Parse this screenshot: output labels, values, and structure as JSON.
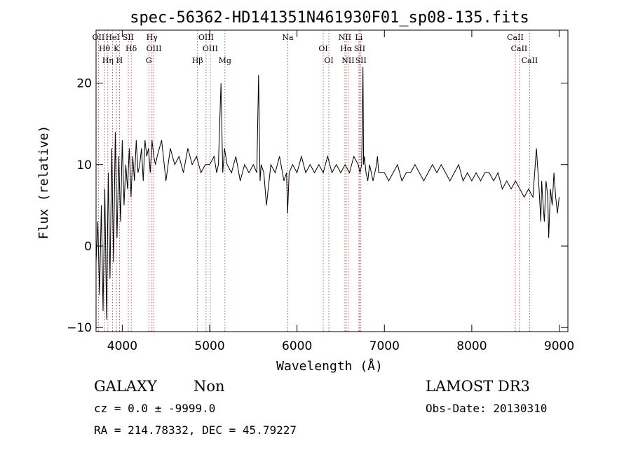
{
  "chart_data": {
    "type": "line",
    "title": "spec-56362-HD141351N461930F01_sp08-135.fits",
    "xlabel": "Wavelength (Å)",
    "ylabel": "Flux (relative)",
    "xlim": [
      3700,
      9100
    ],
    "ylim": [
      -10.5,
      26.5
    ],
    "x_ticks": [
      4000,
      5000,
      6000,
      7000,
      8000,
      9000
    ],
    "y_ticks": [
      -10,
      0,
      10,
      20
    ],
    "grid": false,
    "series": [
      {
        "color": "#000000",
        "x": [
          3700,
          3720,
          3740,
          3760,
          3780,
          3800,
          3820,
          3840,
          3860,
          3880,
          3900,
          3920,
          3940,
          3960,
          3980,
          4000,
          4020,
          4040,
          4060,
          4080,
          4100,
          4120,
          4140,
          4160,
          4180,
          4200,
          4220,
          4240,
          4260,
          4280,
          4300,
          4320,
          4340,
          4360,
          4380,
          4400,
          4450,
          4500,
          4550,
          4600,
          4650,
          4700,
          4750,
          4800,
          4850,
          4900,
          4950,
          5000,
          5050,
          5080,
          5100,
          5130,
          5150,
          5170,
          5200,
          5250,
          5300,
          5350,
          5400,
          5450,
          5500,
          5540,
          5560,
          5577,
          5590,
          5620,
          5650,
          5700,
          5750,
          5800,
          5850,
          5880,
          5892,
          5910,
          5950,
          6000,
          6050,
          6100,
          6150,
          6200,
          6250,
          6300,
          6350,
          6400,
          6450,
          6500,
          6550,
          6600,
          6650,
          6700,
          6720,
          6740,
          6755,
          6762,
          6770,
          6790,
          6810,
          6830,
          6850,
          6870,
          6890,
          6910,
          6920,
          6935,
          6950,
          7000,
          7050,
          7100,
          7150,
          7200,
          7250,
          7300,
          7350,
          7400,
          7450,
          7500,
          7550,
          7600,
          7650,
          7700,
          7750,
          7800,
          7850,
          7900,
          7950,
          8000,
          8050,
          8100,
          8150,
          8200,
          8250,
          8300,
          8350,
          8400,
          8450,
          8500,
          8550,
          8600,
          8650,
          8700,
          8740,
          8770,
          8790,
          8800,
          8810,
          8830,
          8850,
          8870,
          8880,
          8900,
          8920,
          8940,
          8960,
          8980,
          9000
        ],
        "y": [
          -2,
          3,
          -6,
          5,
          -8,
          7,
          -9,
          9,
          -4,
          12,
          -2,
          14,
          1,
          11,
          3,
          13,
          5,
          10,
          7,
          12,
          6,
          11,
          8,
          13,
          9,
          10,
          12,
          8,
          13,
          11,
          12,
          9,
          13,
          11,
          10,
          11,
          13,
          8,
          12,
          10,
          11,
          9,
          12,
          10,
          11,
          9,
          10,
          10,
          11,
          9,
          10,
          20,
          9,
          12,
          10,
          9,
          11,
          8,
          10,
          9,
          10,
          9,
          21,
          8,
          10,
          9,
          5,
          10,
          9,
          11,
          8,
          9,
          4,
          9,
          10,
          9,
          11,
          9,
          10,
          9,
          10,
          9,
          11,
          9,
          10,
          9,
          10,
          9,
          11,
          10,
          9,
          10,
          22,
          10,
          11,
          9,
          8,
          10,
          9,
          8,
          9,
          10,
          11,
          9,
          9,
          9,
          8,
          9,
          10,
          8,
          9,
          9,
          10,
          9,
          8,
          9,
          10,
          9,
          10,
          9,
          8,
          9,
          10,
          8,
          9,
          8,
          9,
          8,
          9,
          9,
          8,
          9,
          7,
          8,
          7,
          8,
          7,
          6,
          7,
          6,
          12,
          7,
          3,
          8,
          6,
          3,
          8,
          6,
          1,
          7,
          5,
          9,
          6,
          4,
          6
        ]
      }
    ],
    "lines": [
      {
        "label": "OII",
        "x": 3727
      },
      {
        "label": "Hθ",
        "x": 3797
      },
      {
        "label": "Hη",
        "x": 3835
      },
      {
        "label": "HeI",
        "x": 3889
      },
      {
        "label": "K",
        "x": 3934
      },
      {
        "label": "H",
        "x": 3968
      },
      {
        "label": "SII",
        "x": 4069
      },
      {
        "label": "Hδ",
        "x": 4102
      },
      {
        "label": "G",
        "x": 4304
      },
      {
        "label": "Hγ",
        "x": 4340
      },
      {
        "label": "OIII",
        "x": 4363
      },
      {
        "label": "Hβ",
        "x": 4861
      },
      {
        "label": "OIII",
        "x": 4959
      },
      {
        "label": "OIII",
        "x": 5007
      },
      {
        "label": "Mg",
        "x": 5175
      },
      {
        "label": "Na",
        "x": 5894
      },
      {
        "label": "OI",
        "x": 6300
      },
      {
        "label": "OI",
        "x": 6364
      },
      {
        "label": "NII",
        "x": 6548
      },
      {
        "label": "Hα",
        "x": 6563
      },
      {
        "label": "NII",
        "x": 6584
      },
      {
        "label": "Li",
        "x": 6708
      },
      {
        "label": "SII",
        "x": 6717
      },
      {
        "label": "SII",
        "x": 6731
      },
      {
        "label": "CaII",
        "x": 8498
      },
      {
        "label": "CaII",
        "x": 8542
      },
      {
        "label": "CaII",
        "x": 8662
      }
    ]
  },
  "info": {
    "class_label": "GALAXY",
    "subclass": "Non",
    "cz": "cz = 0.0 ± -9999.0",
    "radec": "RA = 214.78332, DEC =  45.79227",
    "survey": "LAMOST DR3",
    "obs_date": "Obs-Date: 20130310"
  }
}
